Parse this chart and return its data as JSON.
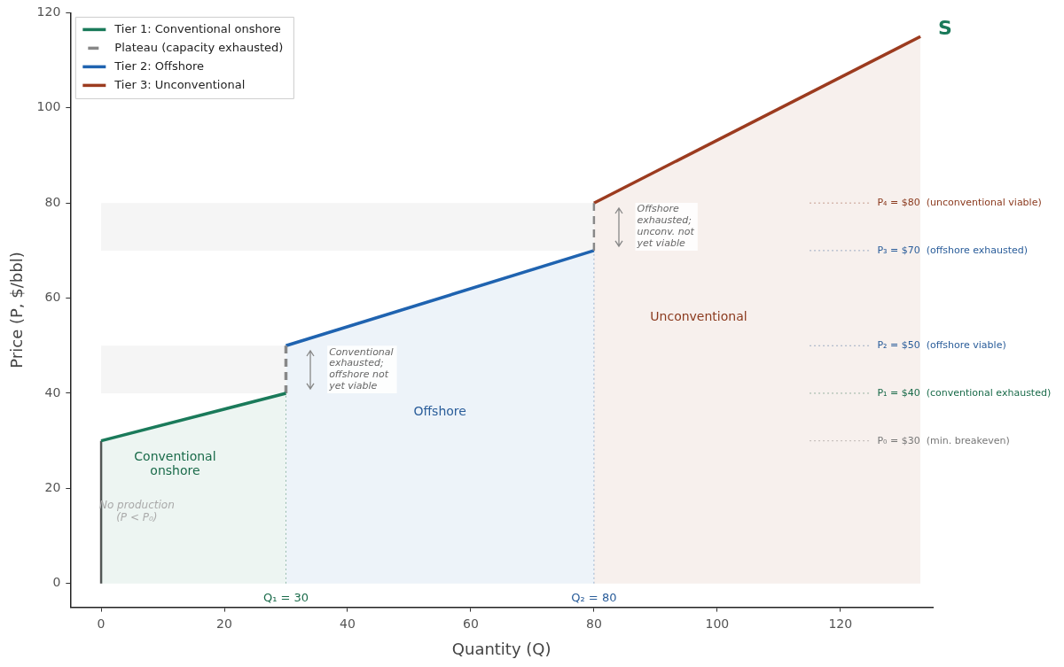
{
  "chart_data": {
    "type": "line",
    "xlabel": "Quantity (Q)",
    "ylabel": "Price (P, $/bbl)",
    "xlim": [
      -5,
      135
    ],
    "xticks": [
      0,
      20,
      40,
      60,
      80,
      100,
      120
    ],
    "ylim": [
      -5,
      120
    ],
    "yticks": [
      0,
      20,
      40,
      60,
      80,
      100,
      120
    ],
    "grid": false,
    "legend": "top left",
    "series": [
      {
        "name": "Tier 1: Conventional onshore",
        "type": "area",
        "color": "#1a7a5a",
        "x": [
          0,
          30
        ],
        "values": [
          30,
          40
        ]
      },
      {
        "name": "Plateau (capacity exhausted)",
        "type": "line",
        "line_style": "dashed",
        "color": "#888888",
        "x": [
          30,
          30
        ],
        "values": [
          40,
          50
        ]
      },
      {
        "type": "line",
        "line_style": "dashed",
        "color": "#888888",
        "x": [
          80,
          80
        ],
        "values": [
          70,
          80
        ]
      },
      {
        "name": "Tier 2: Offshore",
        "type": "area",
        "color": "#1f63b0",
        "x": [
          30,
          80
        ],
        "values": [
          50,
          70
        ]
      },
      {
        "name": "Tier 3: Unconventional",
        "type": "area",
        "color": "#9c3b1f",
        "x": [
          80,
          133
        ],
        "values": [
          80,
          115
        ]
      },
      {
        "type": "line",
        "color": "#555555",
        "x": [
          0,
          0
        ],
        "values": [
          0,
          30
        ]
      }
    ],
    "bands": [
      {
        "axis": "y",
        "from": 40,
        "to": 50,
        "color": "#f5f5f5"
      },
      {
        "axis": "y",
        "from": 70,
        "to": 80,
        "color": "#f5f5f5"
      }
    ],
    "ref_lines": [
      {
        "axis": "x",
        "value": 30,
        "label": "Q₁ = 30",
        "color": "#1a6b4a",
        "line_style": "dotted"
      },
      {
        "axis": "x",
        "value": 80,
        "label": "Q₂ = 80",
        "color": "#2a5d9a",
        "line_style": "dotted"
      },
      {
        "axis": "y",
        "value": 80,
        "label": "P₄ = $80  (unconventional viable)",
        "color": "#8b3a1e",
        "line_style": "dotted"
      },
      {
        "axis": "y",
        "value": 70,
        "label": "P₃ = $70  (offshore exhausted)",
        "color": "#2a5d9a",
        "line_style": "dotted"
      },
      {
        "axis": "y",
        "value": 50,
        "label": "P₂ = $50  (offshore viable)",
        "color": "#2a5d9a",
        "line_style": "dotted"
      },
      {
        "axis": "y",
        "value": 40,
        "label": "P₁ = $40  (conventional exhausted)",
        "color": "#1a6b4a",
        "line_style": "dotted"
      },
      {
        "axis": "y",
        "value": 30,
        "label": "P₀ = $30  (min. breakeven)",
        "color": "#777777",
        "line_style": "dotted"
      }
    ],
    "annotations": [
      "Conventional\nonshore",
      "Offshore",
      "Unconventional",
      "No production\n(P < P₀)",
      "Conventional\nexhausted;\noffshore not\nyet viable",
      "Offshore\nexhausted;\nunconv. not\nyet viable",
      "S"
    ]
  }
}
